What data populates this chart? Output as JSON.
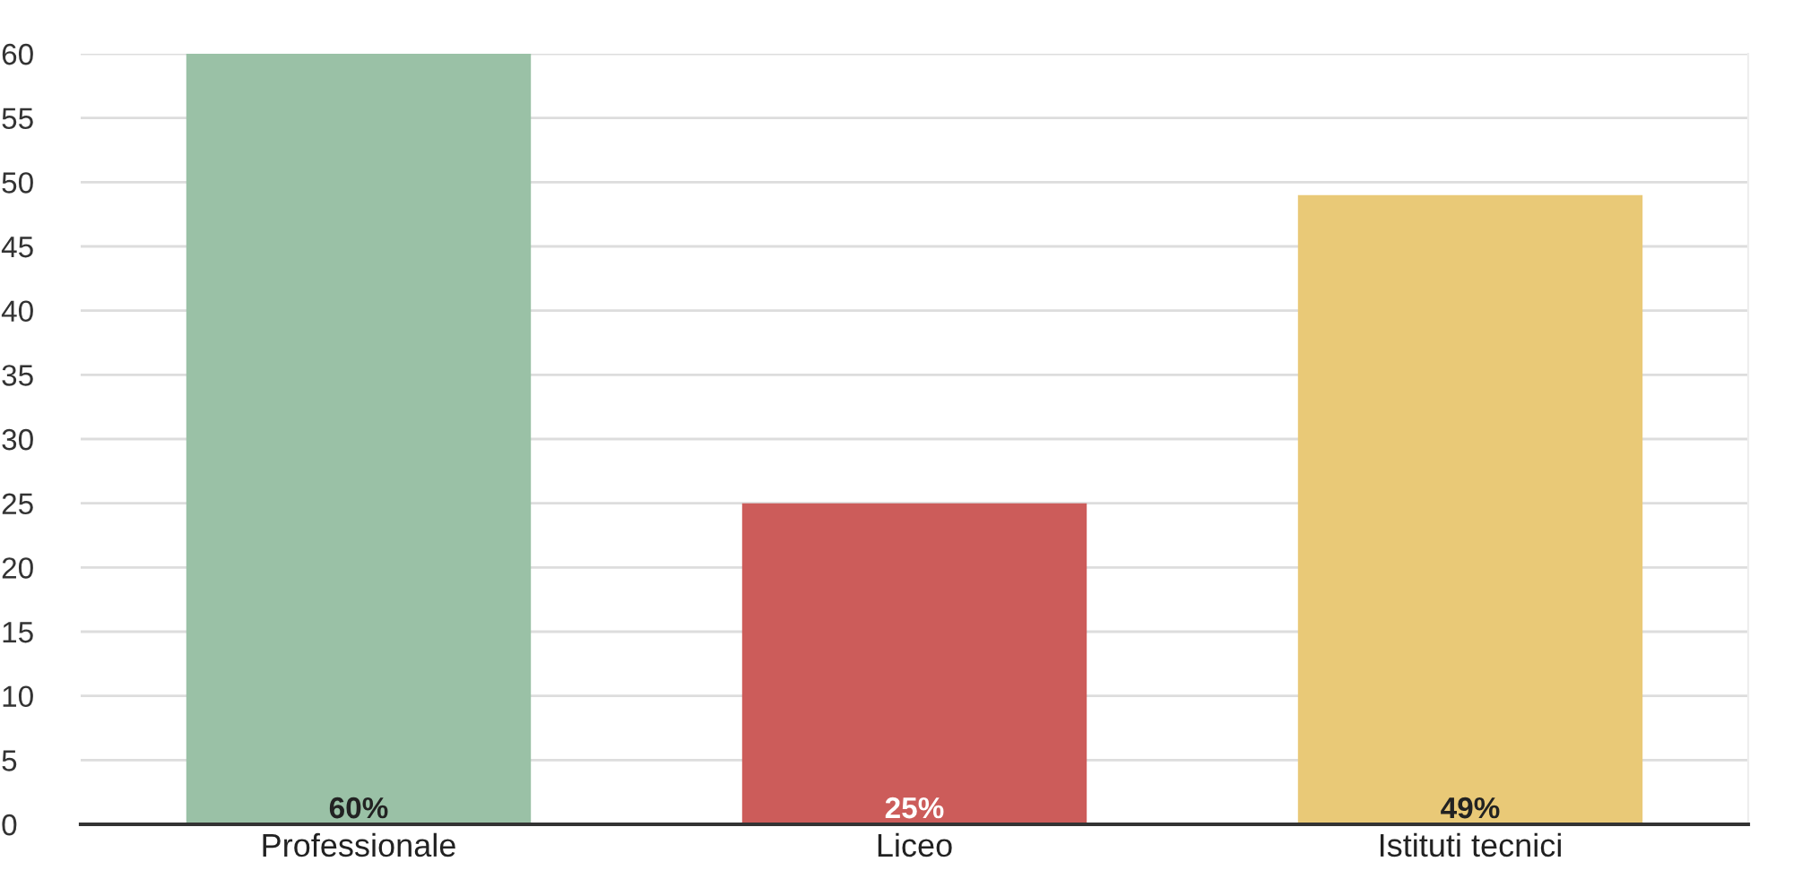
{
  "chart_data": {
    "type": "bar",
    "categories": [
      "Professionale",
      "Liceo",
      "Istituti tecnici"
    ],
    "values": [
      60,
      25,
      49
    ],
    "colors": [
      "#9ac1a6",
      "#cc5c5a",
      "#e9c977"
    ],
    "value_labels": [
      "60%",
      "25%",
      "49%"
    ],
    "ylim": [
      0,
      60
    ],
    "yticks": [
      0,
      5,
      10,
      15,
      20,
      25,
      30,
      35,
      40,
      45,
      50,
      55,
      60
    ],
    "grid": "y",
    "legend": false
  }
}
